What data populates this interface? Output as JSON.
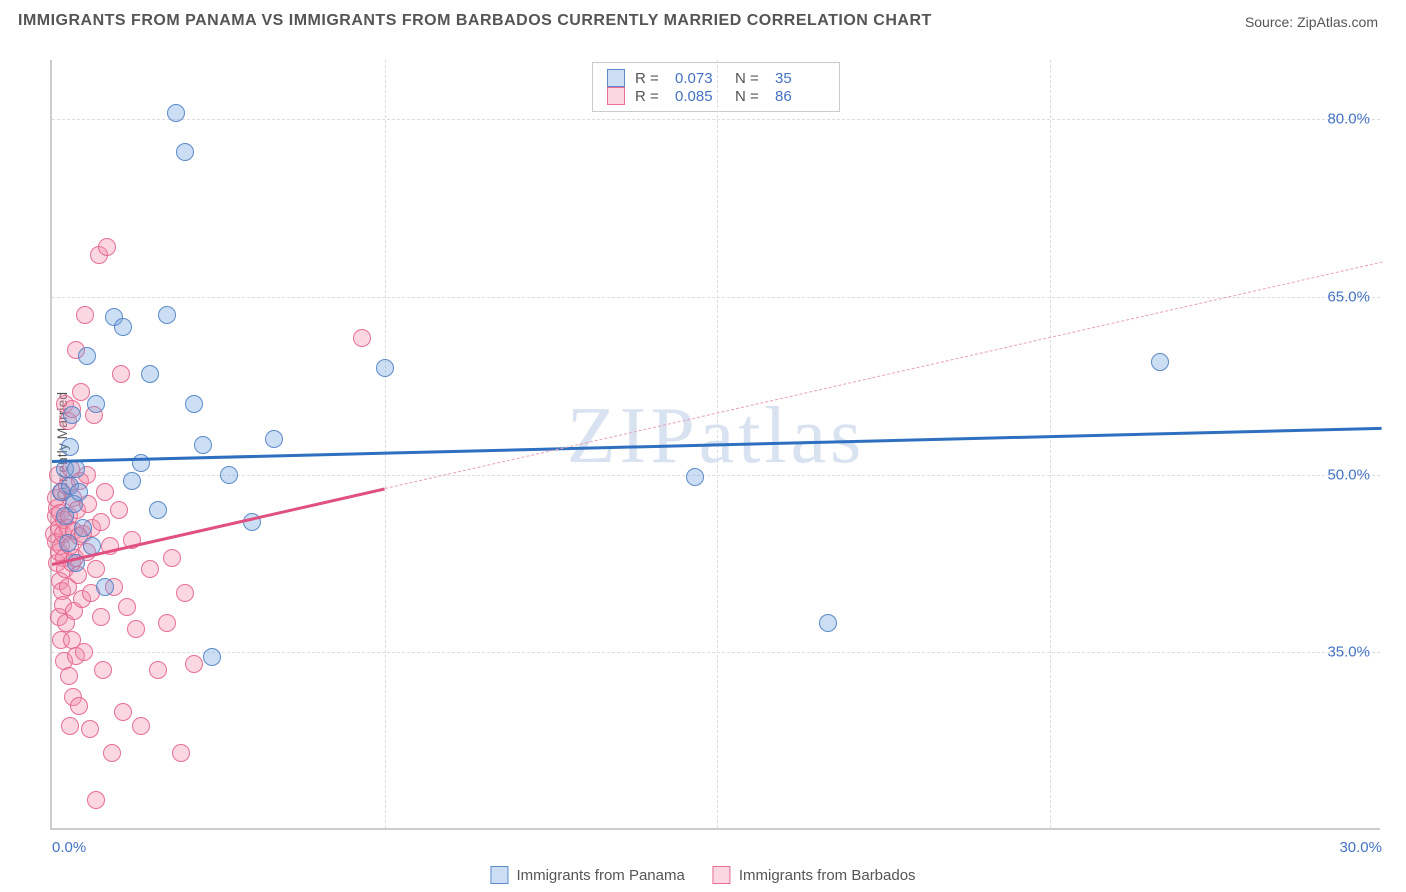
{
  "title": "IMMIGRANTS FROM PANAMA VS IMMIGRANTS FROM BARBADOS CURRENTLY MARRIED CORRELATION CHART",
  "source": "Source: ZipAtlas.com",
  "watermark": "ZIPatlas",
  "ylabel": "Currently Married",
  "chart": {
    "type": "scatter",
    "xlim": [
      0,
      30
    ],
    "ylim": [
      20,
      85
    ],
    "xticks": [
      0.0,
      30.0
    ],
    "xtick_labels": [
      "0.0%",
      "30.0%"
    ],
    "yticks": [
      35.0,
      50.0,
      65.0,
      80.0
    ],
    "ytick_labels": [
      "35.0%",
      "50.0%",
      "65.0%",
      "80.0%"
    ],
    "x_gridlines": [
      7.5,
      15.0,
      22.5
    ],
    "background_color": "#ffffff",
    "grid_color": "#dddddd",
    "axis_color": "#cccccc",
    "tick_label_color": "#4472c4",
    "title_color": "#555555",
    "title_fontsize": 16,
    "label_fontsize": 14,
    "tick_fontsize": 15,
    "marker_radius": 9,
    "marker_opacity": 0.35
  },
  "series": [
    {
      "name": "Immigrants from Panama",
      "key": "A",
      "color_fill": "rgba(110,160,220,0.35)",
      "color_stroke": "rgba(80,130,200,0.9)",
      "trend_color": "#2f6fc0",
      "R": "0.073",
      "N": "35",
      "trend": {
        "x1": 0,
        "y1": 51.2,
        "x2": 30,
        "y2": 54.0,
        "dashed_from_x": null
      },
      "points": [
        [
          0.2,
          48.5
        ],
        [
          0.3,
          50.5
        ],
        [
          0.3,
          46.5
        ],
        [
          0.35,
          44.2
        ],
        [
          0.4,
          52.3
        ],
        [
          0.4,
          49
        ],
        [
          0.45,
          55
        ],
        [
          0.5,
          47.5
        ],
        [
          0.55,
          42.5
        ],
        [
          0.55,
          50.5
        ],
        [
          0.6,
          48.5
        ],
        [
          0.7,
          45.5
        ],
        [
          0.8,
          60
        ],
        [
          0.9,
          44
        ],
        [
          1.0,
          56
        ],
        [
          1.2,
          40.5
        ],
        [
          1.4,
          63.3
        ],
        [
          1.6,
          62.5
        ],
        [
          1.8,
          49.5
        ],
        [
          2.0,
          51.0
        ],
        [
          2.2,
          58.5
        ],
        [
          2.4,
          47
        ],
        [
          2.6,
          63.5
        ],
        [
          2.8,
          80.5
        ],
        [
          3.0,
          77.2
        ],
        [
          3.2,
          56.0
        ],
        [
          3.4,
          52.5
        ],
        [
          3.6,
          34.6
        ],
        [
          4.0,
          50
        ],
        [
          4.5,
          46.0
        ],
        [
          5.0,
          53
        ],
        [
          7.5,
          59.0
        ],
        [
          14.5,
          49.8
        ],
        [
          17.5,
          37.5
        ],
        [
          25.0,
          59.5
        ]
      ]
    },
    {
      "name": "Immigrants from Barbados",
      "key": "B",
      "color_fill": "rgba(240,140,170,0.35)",
      "color_stroke": "rgba(230,100,140,0.9)",
      "trend_color": "#e05080",
      "R": "0.085",
      "N": "86",
      "trend": {
        "x1": 0,
        "y1": 42.5,
        "x2": 30,
        "y2": 68.0,
        "dashed_from_x": 7.5
      },
      "points": [
        [
          0.05,
          45
        ],
        [
          0.08,
          46.5
        ],
        [
          0.1,
          44.3
        ],
        [
          0.1,
          48
        ],
        [
          0.12,
          42.5
        ],
        [
          0.12,
          47.2
        ],
        [
          0.14,
          50
        ],
        [
          0.15,
          38
        ],
        [
          0.15,
          43.5
        ],
        [
          0.16,
          45.5
        ],
        [
          0.18,
          41
        ],
        [
          0.18,
          46.8
        ],
        [
          0.2,
          36.0
        ],
        [
          0.2,
          44
        ],
        [
          0.22,
          40.2
        ],
        [
          0.22,
          48.5
        ],
        [
          0.24,
          39
        ],
        [
          0.25,
          45
        ],
        [
          0.26,
          43
        ],
        [
          0.28,
          34.3
        ],
        [
          0.28,
          46.2
        ],
        [
          0.3,
          56
        ],
        [
          0.3,
          42
        ],
        [
          0.32,
          37.5
        ],
        [
          0.33,
          49
        ],
        [
          0.35,
          45.5
        ],
        [
          0.35,
          54.5
        ],
        [
          0.36,
          40.5
        ],
        [
          0.38,
          33
        ],
        [
          0.38,
          46.5
        ],
        [
          0.4,
          28.8
        ],
        [
          0.4,
          44
        ],
        [
          0.42,
          50.5
        ],
        [
          0.44,
          36.0
        ],
        [
          0.45,
          42.5
        ],
        [
          0.46,
          55.5
        ],
        [
          0.48,
          31.2
        ],
        [
          0.48,
          48
        ],
        [
          0.5,
          38.5
        ],
        [
          0.5,
          45.2
        ],
        [
          0.52,
          43
        ],
        [
          0.54,
          60.5
        ],
        [
          0.55,
          34.7
        ],
        [
          0.56,
          47
        ],
        [
          0.58,
          41.5
        ],
        [
          0.6,
          44.8
        ],
        [
          0.62,
          30.5
        ],
        [
          0.64,
          49.5
        ],
        [
          0.65,
          57
        ],
        [
          0.68,
          39.5
        ],
        [
          0.7,
          45
        ],
        [
          0.72,
          35
        ],
        [
          0.75,
          63.5
        ],
        [
          0.78,
          43.5
        ],
        [
          0.8,
          50
        ],
        [
          0.82,
          47.5
        ],
        [
          0.85,
          28.5
        ],
        [
          0.88,
          40
        ],
        [
          0.9,
          45.5
        ],
        [
          0.95,
          55
        ],
        [
          1.0,
          22.5
        ],
        [
          1.0,
          42
        ],
        [
          1.05,
          68.5
        ],
        [
          1.1,
          38
        ],
        [
          1.1,
          46
        ],
        [
          1.15,
          33.5
        ],
        [
          1.2,
          48.5
        ],
        [
          1.25,
          69.2
        ],
        [
          1.3,
          44
        ],
        [
          1.35,
          26.5
        ],
        [
          1.4,
          40.5
        ],
        [
          1.5,
          47
        ],
        [
          1.55,
          58.5
        ],
        [
          1.6,
          30
        ],
        [
          1.7,
          38.8
        ],
        [
          1.8,
          44.5
        ],
        [
          1.9,
          37
        ],
        [
          2.0,
          28.8
        ],
        [
          2.2,
          42
        ],
        [
          2.4,
          33.5
        ],
        [
          2.6,
          37.5
        ],
        [
          2.7,
          43
        ],
        [
          2.9,
          26.5
        ],
        [
          3.0,
          40
        ],
        [
          3.2,
          34
        ],
        [
          7.0,
          61.5
        ]
      ]
    }
  ],
  "legend_top": {
    "R_label": "R =",
    "N_label": "N ="
  },
  "legend_bottom_labels": [
    "Immigrants from Panama",
    "Immigrants from Barbados"
  ]
}
